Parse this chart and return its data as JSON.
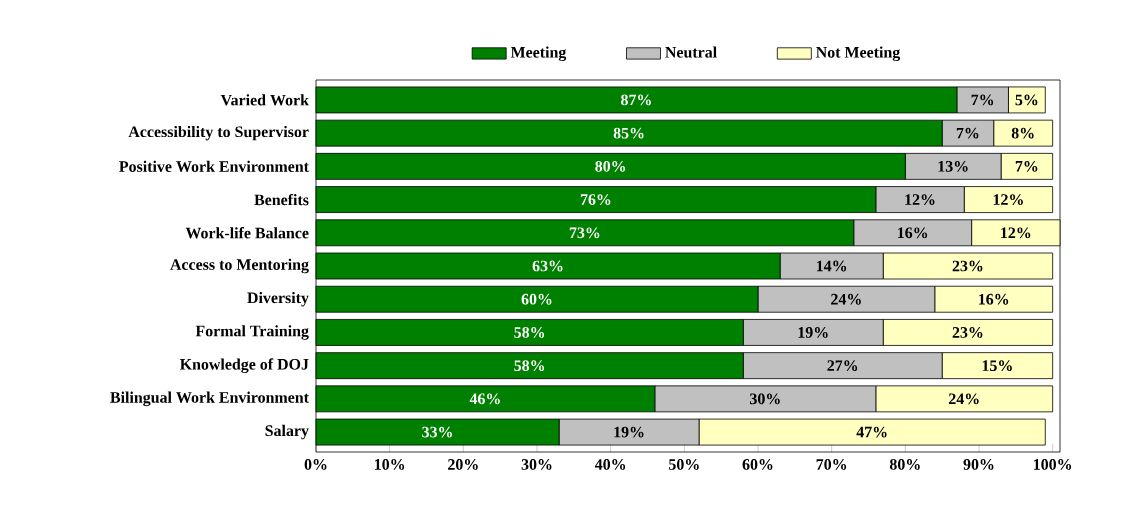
{
  "chart_data": {
    "type": "bar",
    "orientation": "horizontal",
    "stacked": true,
    "categories": [
      "Varied Work",
      "Accessibility to Supervisor",
      "Positive Work Environment",
      "Benefits",
      "Work-life Balance",
      "Access to Mentoring",
      "Diversity",
      "Formal Training",
      "Knowledge of DOJ",
      "Bilingual Work Environment",
      "Salary"
    ],
    "series": [
      {
        "name": "Meeting",
        "color": "#008000",
        "values": [
          87,
          85,
          80,
          76,
          73,
          63,
          60,
          58,
          58,
          46,
          33
        ],
        "value_labels": [
          "87%",
          "85%",
          "80%",
          "76%",
          "73%",
          "63%",
          "60%",
          "58%",
          "58%",
          "46%",
          "33%"
        ]
      },
      {
        "name": "Neutral",
        "color": "#c0c0c0",
        "values": [
          7,
          7,
          13,
          12,
          16,
          14,
          24,
          19,
          27,
          30,
          19
        ],
        "value_labels": [
          "7%",
          "7%",
          "13%",
          "12%",
          "16%",
          "14%",
          "24%",
          "19%",
          "27%",
          "30%",
          "19%"
        ]
      },
      {
        "name": "Not Meeting",
        "color": "#ffffc0",
        "values": [
          5,
          8,
          7,
          12,
          12,
          23,
          16,
          23,
          15,
          24,
          47
        ],
        "value_labels": [
          "5%",
          "8%",
          "7%",
          "12%",
          "12%",
          "23%",
          "16%",
          "23%",
          "15%",
          "24%",
          "47%"
        ]
      }
    ],
    "xlim": [
      0,
      101
    ],
    "xticks": [
      {
        "value": 0,
        "label": "0%"
      },
      {
        "value": 10,
        "label": "10%"
      },
      {
        "value": 20,
        "label": "20%"
      },
      {
        "value": 30,
        "label": "30%"
      },
      {
        "value": 40,
        "label": "40%"
      },
      {
        "value": 50,
        "label": "50%"
      },
      {
        "value": 60,
        "label": "60%"
      },
      {
        "value": 70,
        "label": "70%"
      },
      {
        "value": 80,
        "label": "80%"
      },
      {
        "value": 90,
        "label": "90%"
      },
      {
        "value": 100,
        "label": "100%"
      }
    ],
    "legend": "top"
  }
}
